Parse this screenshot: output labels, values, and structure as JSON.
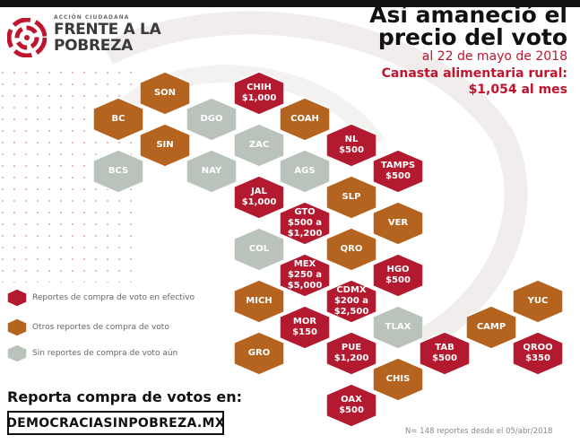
{
  "logo": {
    "org_small": "ACCIÓN CIUDADANA",
    "line1": "FRENTE A LA",
    "line2": "POBREZA"
  },
  "header": {
    "title_line1": "Así amaneció el",
    "title_line2": "precio del voto",
    "date": "al 22 de mayo de 2018",
    "canasta_line1": "Canasta alimentaria rural:",
    "canasta_line2": "$1,054 al mes"
  },
  "colors": {
    "red": "#b3192f",
    "orange": "#b5641f",
    "gray": "#b9c2bb",
    "accent": "#c0152f"
  },
  "legend": [
    {
      "category": "red",
      "label": "Reportes de compra de voto en efectivo"
    },
    {
      "category": "orange",
      "label": "Otros reportes de compra de voto"
    },
    {
      "category": "gray",
      "label": "Sin reportes de compra de voto aún"
    }
  ],
  "states": [
    {
      "code": "SON",
      "price": "",
      "category": "orange"
    },
    {
      "code": "CHIH",
      "price": "$1,000",
      "category": "red"
    },
    {
      "code": "BC",
      "price": "",
      "category": "orange"
    },
    {
      "code": "DGO",
      "price": "",
      "category": "gray"
    },
    {
      "code": "COAH",
      "price": "",
      "category": "orange"
    },
    {
      "code": "SIN",
      "price": "",
      "category": "orange"
    },
    {
      "code": "ZAC",
      "price": "",
      "category": "gray"
    },
    {
      "code": "NL",
      "price": "$500",
      "category": "red"
    },
    {
      "code": "BCS",
      "price": "",
      "category": "gray"
    },
    {
      "code": "NAY",
      "price": "",
      "category": "gray"
    },
    {
      "code": "AGS",
      "price": "",
      "category": "gray"
    },
    {
      "code": "TAMPS",
      "price": "$500",
      "category": "red"
    },
    {
      "code": "JAL",
      "price": "$1,000",
      "category": "red"
    },
    {
      "code": "SLP",
      "price": "",
      "category": "orange"
    },
    {
      "code": "GTO",
      "price": "$500 a\n$1,200",
      "category": "red"
    },
    {
      "code": "VER",
      "price": "",
      "category": "orange"
    },
    {
      "code": "COL",
      "price": "",
      "category": "gray"
    },
    {
      "code": "QRO",
      "price": "",
      "category": "orange"
    },
    {
      "code": "MEX",
      "price": "$250 a\n$5,000",
      "category": "red"
    },
    {
      "code": "HGO",
      "price": "$500",
      "category": "red"
    },
    {
      "code": "MICH",
      "price": "",
      "category": "orange"
    },
    {
      "code": "CDMX",
      "price": "$200 a\n$2,500",
      "category": "red"
    },
    {
      "code": "YUC",
      "price": "",
      "category": "orange"
    },
    {
      "code": "MOR",
      "price": "$150",
      "category": "red"
    },
    {
      "code": "TLAX",
      "price": "",
      "category": "gray"
    },
    {
      "code": "CAMP",
      "price": "",
      "category": "orange"
    },
    {
      "code": "GRO",
      "price": "",
      "category": "orange"
    },
    {
      "code": "PUE",
      "price": "$1,200",
      "category": "red"
    },
    {
      "code": "TAB",
      "price": "$500",
      "category": "red"
    },
    {
      "code": "QROO",
      "price": "$350",
      "category": "red"
    },
    {
      "code": "CHIS",
      "price": "",
      "category": "orange"
    },
    {
      "code": "OAX",
      "price": "$500",
      "category": "red"
    }
  ],
  "cta": {
    "text": "Reporta compra de votos en:",
    "site": "DEMOCRACIASINPOBREZA.MX"
  },
  "footnote": "N= 148 reportes desde el 05/abr/2018"
}
